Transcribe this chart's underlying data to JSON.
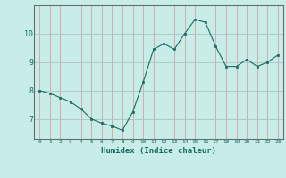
{
  "x": [
    0,
    1,
    2,
    3,
    4,
    5,
    6,
    7,
    8,
    9,
    10,
    11,
    12,
    13,
    14,
    15,
    16,
    17,
    18,
    19,
    20,
    21,
    22,
    23
  ],
  "y": [
    8.0,
    7.9,
    7.75,
    7.6,
    7.35,
    7.0,
    6.85,
    6.75,
    6.6,
    7.25,
    8.3,
    9.45,
    9.65,
    9.45,
    10.0,
    10.5,
    10.4,
    9.55,
    8.85,
    8.85,
    9.1,
    8.85,
    9.0,
    9.25
  ],
  "xlabel": "Humidex (Indice chaleur)",
  "bg_color": "#c8ede8",
  "line_color": "#1a6b60",
  "marker_color": "#1a6b60",
  "grid_h_color": "#b0c8c8",
  "grid_v_color": "#d4aaaa",
  "yticks": [
    7,
    8,
    9,
    10
  ],
  "xticks": [
    0,
    1,
    2,
    3,
    4,
    5,
    6,
    7,
    8,
    9,
    10,
    11,
    12,
    13,
    14,
    15,
    16,
    17,
    18,
    19,
    20,
    21,
    22,
    23
  ],
  "ylim": [
    6.3,
    11.0
  ],
  "xlim": [
    -0.5,
    23.5
  ]
}
